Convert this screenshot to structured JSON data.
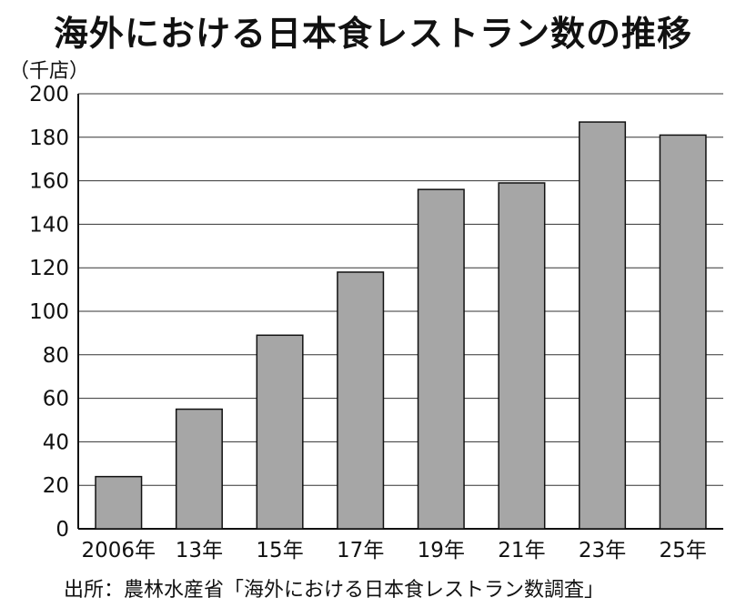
{
  "chart_data": {
    "type": "bar",
    "title": "海外における日本食レストラン数の推移",
    "ylabel": "（千店）",
    "categories": [
      "2006年",
      "13年",
      "15年",
      "17年",
      "19年",
      "21年",
      "23年",
      "25年"
    ],
    "values": [
      24,
      55,
      89,
      118,
      156,
      159,
      187,
      181
    ],
    "ylim": [
      0,
      200
    ],
    "yticks": [
      0,
      20,
      40,
      60,
      80,
      100,
      120,
      140,
      160,
      180,
      200
    ],
    "grid": true,
    "bar_color": "#a6a6a6",
    "source": "出所：農林水産省「海外における日本食レストラン数調査」"
  }
}
